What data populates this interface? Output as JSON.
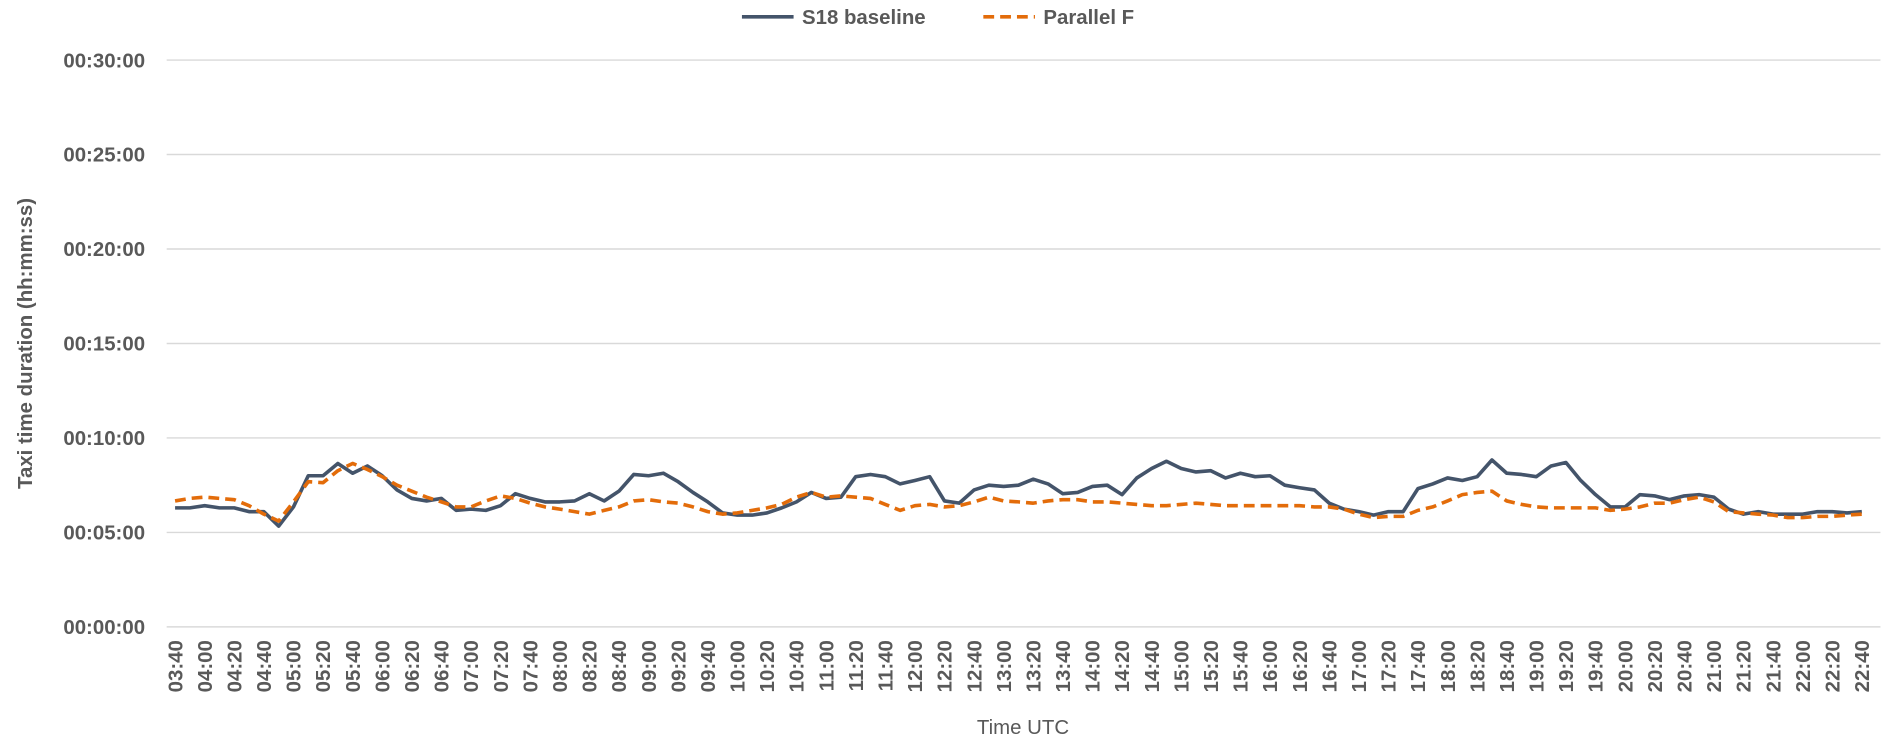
{
  "chart_data": {
    "type": "line",
    "x_label": "Time UTC",
    "y_label": "Taxi time duration (hh:mm:ss)",
    "categories": [
      "03:40",
      null,
      "04:00",
      null,
      "04:20",
      null,
      "04:40",
      null,
      "05:00",
      null,
      "05:20",
      null,
      "05:40",
      null,
      "06:00",
      null,
      "06:20",
      null,
      "06:40",
      null,
      "07:00",
      null,
      "07:20",
      null,
      "07:40",
      null,
      "08:00",
      null,
      "08:20",
      null,
      "08:40",
      null,
      "09:00",
      null,
      "09:20",
      null,
      "09:40",
      null,
      "10:00",
      null,
      "10:20",
      null,
      "10:40",
      null,
      "11:00",
      null,
      "11:20",
      null,
      "11:40",
      null,
      "12:00",
      null,
      "12:20",
      null,
      "12:40",
      null,
      "13:00",
      null,
      "13:20",
      null,
      "13:40",
      null,
      "14:00",
      null,
      "14:20",
      null,
      "14:40",
      null,
      "15:00",
      null,
      "15:20",
      null,
      "15:40",
      null,
      "16:00",
      null,
      "16:20",
      null,
      "16:40",
      null,
      "17:00",
      null,
      "17:20",
      null,
      "17:40",
      null,
      "18:00",
      null,
      "18:20",
      null,
      "18:40",
      null,
      "19:00",
      null,
      "19:20",
      null,
      "19:40",
      null,
      "20:00",
      null,
      "20:20",
      null,
      "20:40",
      null,
      "21:00",
      null,
      "21:20",
      null,
      "21:40",
      null,
      "22:00",
      null,
      "22:20",
      null,
      "22:40"
    ],
    "series": [
      {
        "name": "S18 baseline",
        "color": "#44546a",
        "dash": "solid",
        "values": [
          378,
          378,
          385,
          378,
          378,
          366,
          366,
          320,
          381,
          480,
          480,
          519,
          488,
          511,
          480,
          435,
          408,
          400,
          408,
          370,
          374,
          370,
          385,
          423,
          408,
          397,
          397,
          400,
          423,
          400,
          431,
          484,
          480,
          488,
          461,
          427,
          397,
          362,
          355,
          355,
          362,
          378,
          397,
          427,
          408,
          412,
          477,
          484,
          477,
          454,
          465,
          477,
          400,
          393,
          435,
          450,
          446,
          450,
          469,
          454,
          423,
          427,
          446,
          450,
          420,
          473,
          503,
          526,
          503,
          492,
          496,
          473,
          488,
          477,
          480,
          450,
          442,
          435,
          393,
          374,
          366,
          355,
          366,
          366,
          439,
          454,
          473,
          465,
          477,
          530,
          488,
          484,
          477,
          511,
          522,
          465,
          420,
          381,
          381,
          420,
          416,
          404,
          416,
          420,
          412,
          374,
          358,
          366,
          358,
          358,
          358,
          366,
          366,
          362,
          366
        ]
      },
      {
        "name": "Parallel F",
        "color": "#e36c0a",
        "dash": "dashed",
        "values": [
          400,
          408,
          412,
          408,
          404,
          385,
          358,
          336,
          397,
          461,
          458,
          496,
          519,
          500,
          477,
          450,
          431,
          412,
          397,
          381,
          381,
          400,
          416,
          408,
          393,
          381,
          374,
          366,
          358,
          370,
          381,
          400,
          404,
          397,
          393,
          381,
          366,
          358,
          362,
          370,
          378,
          389,
          412,
          427,
          412,
          416,
          412,
          408,
          389,
          370,
          385,
          389,
          381,
          385,
          397,
          412,
          400,
          397,
          393,
          400,
          404,
          404,
          397,
          397,
          393,
          389,
          385,
          385,
          389,
          393,
          389,
          385,
          385,
          385,
          385,
          385,
          385,
          381,
          381,
          374,
          358,
          347,
          351,
          351,
          370,
          381,
          400,
          420,
          427,
          431,
          400,
          389,
          381,
          378,
          378,
          378,
          378,
          370,
          374,
          381,
          393,
          393,
          404,
          412,
          397,
          366,
          362,
          358,
          355,
          347,
          347,
          351,
          351,
          355,
          358
        ]
      }
    ],
    "ylim": [
      0,
      1800
    ],
    "yticks": [
      {
        "value": 0,
        "label": "00:00:00"
      },
      {
        "value": 300,
        "label": "00:05:00"
      },
      {
        "value": 600,
        "label": "00:10:00"
      },
      {
        "value": 900,
        "label": "00:15:00"
      },
      {
        "value": 1200,
        "label": "00:20:00"
      },
      {
        "value": 1500,
        "label": "00:25:00"
      },
      {
        "value": 1800,
        "label": "00:30:00"
      }
    ],
    "grid": true,
    "legend": "top"
  }
}
